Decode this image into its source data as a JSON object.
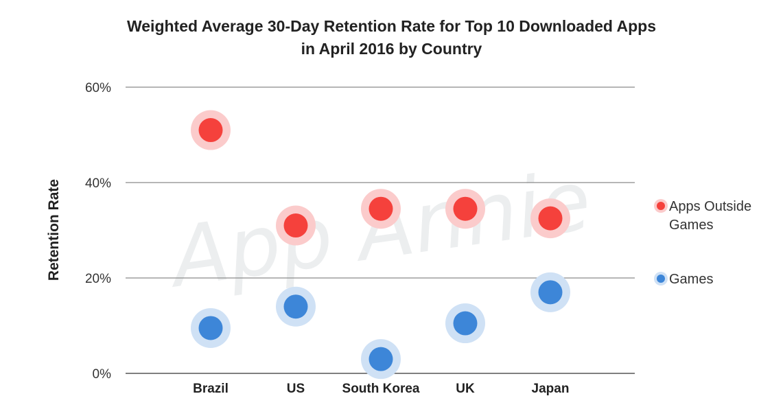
{
  "title_lines": [
    "Weighted Average 30-Day Retention Rate for Top 10 Downloaded Apps",
    "in April 2016 by Country"
  ],
  "watermark": "App Annie",
  "chart_data": {
    "type": "scatter",
    "title": "Weighted Average 30-Day Retention Rate for Top 10 Downloaded Apps in April 2016 by Country",
    "xlabel": "",
    "ylabel": "Retention Rate",
    "categories": [
      "Brazil",
      "US",
      "South Korea",
      "UK",
      "Japan"
    ],
    "y_ticks": [
      "0%",
      "20%",
      "40%",
      "60%"
    ],
    "ylim": [
      0,
      60
    ],
    "grid": true,
    "legend_position": "right",
    "series": [
      {
        "name": "Apps Outside Games",
        "color": "#f5413c",
        "halo_color": "#fbcbcb",
        "values": [
          51,
          31,
          34.5,
          34.5,
          32.5
        ]
      },
      {
        "name": "Games",
        "color": "#3d86d8",
        "halo_color": "#cfe1f5",
        "values": [
          9.5,
          14,
          3,
          10.5,
          17
        ]
      }
    ]
  }
}
